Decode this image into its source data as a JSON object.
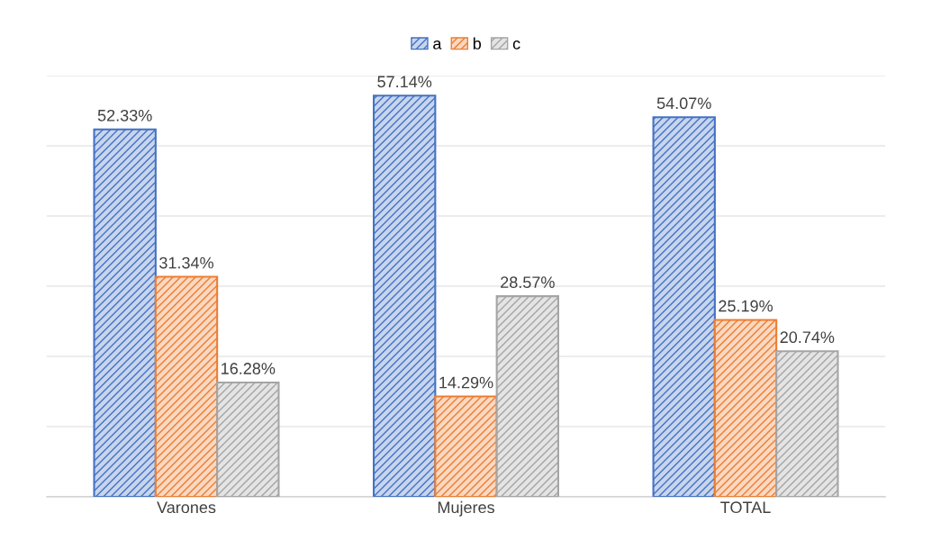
{
  "chart_data": {
    "type": "bar",
    "categories": [
      "Varones",
      "Mujeres",
      "TOTAL"
    ],
    "series": [
      {
        "name": "a",
        "color": "#4472c4",
        "values": [
          52.33,
          57.14,
          54.07
        ],
        "value_labels": [
          "52.33%",
          "57.14%",
          "54.07%"
        ]
      },
      {
        "name": "b",
        "color": "#ed7d31",
        "values": [
          31.34,
          14.29,
          25.19
        ],
        "value_labels": [
          "31.34%",
          "14.29%",
          "25.19%"
        ]
      },
      {
        "name": "c",
        "color": "#a5a5a5",
        "values": [
          16.28,
          28.57,
          20.74
        ],
        "value_labels": [
          "16.28%",
          "28.57%",
          "20.74%"
        ]
      }
    ],
    "ylim": [
      0,
      60
    ],
    "yticks": [
      {
        "value": 0,
        "label": null
      },
      {
        "value": 10,
        "label": null
      },
      {
        "value": 20,
        "label": null
      },
      {
        "value": 30,
        "label": null
      },
      {
        "value": 40,
        "label": null
      },
      {
        "value": 50,
        "label": null
      },
      {
        "value": 60,
        "label": null
      }
    ],
    "grid": "y",
    "legend": "top",
    "tick_labels": "x"
  }
}
